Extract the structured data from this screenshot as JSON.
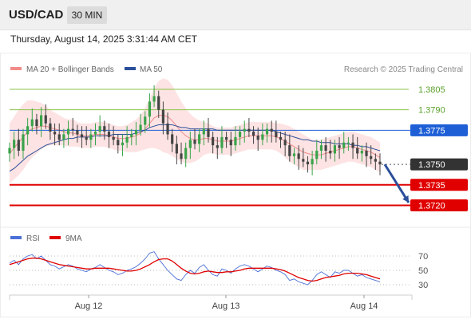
{
  "header": {
    "symbol": "USD/CAD",
    "timeframe": "30 MIN"
  },
  "datetime": "Thursday, August 14, 2025 3:31:44 AM CET",
  "legend": {
    "bb": "MA 20 + Bollinger Bands",
    "ma50": "MA 50",
    "credit": "Research © 2025 Trading Central"
  },
  "rsi_legend": {
    "rsi": "RSI",
    "ma9": "9MA"
  },
  "colors": {
    "bb": "#f28b8b",
    "ma50": "#2b4f9a",
    "rsi": "#4a6fd6",
    "ma9": "#e00000",
    "resistance": "#8bc34a",
    "pivot": "#1e5fd6",
    "support": "#e00000"
  },
  "chart_data": [
    {
      "type": "candlestick",
      "title": "USD/CAD",
      "ylim": [
        1.3708,
        1.3812
      ],
      "x_ticks": [
        "Aug 12",
        "Aug 13",
        "Aug 14"
      ],
      "levels": [
        {
          "value": 1.3805,
          "label": "1.3805",
          "kind": "resistance"
        },
        {
          "value": 1.379,
          "label": "1.3790",
          "kind": "resistance"
        },
        {
          "value": 1.3775,
          "label": "1.3775",
          "kind": "pivot"
        },
        {
          "value": 1.375,
          "label": "1.3750",
          "kind": "last"
        },
        {
          "value": 1.3735,
          "label": "1.3735",
          "kind": "support"
        },
        {
          "value": 1.372,
          "label": "1.3720",
          "kind": "support"
        }
      ],
      "forecast": {
        "from": 1.375,
        "to": 1.3722
      },
      "close_path": [
        1.3762,
        1.3768,
        1.376,
        1.3772,
        1.3778,
        1.3783,
        1.3778,
        1.3786,
        1.378,
        1.3774,
        1.3772,
        1.3768,
        1.3772,
        1.3776,
        1.3775,
        1.3772,
        1.377,
        1.3768,
        1.3772,
        1.3774,
        1.3778,
        1.3774,
        1.377,
        1.3768,
        1.3764,
        1.3766,
        1.377,
        1.3772,
        1.3775,
        1.3779,
        1.3785,
        1.3796,
        1.38,
        1.379,
        1.378,
        1.3772,
        1.3765,
        1.3758,
        1.3754,
        1.3762,
        1.3768,
        1.3765,
        1.3772,
        1.3776,
        1.377,
        1.3764,
        1.3762,
        1.377,
        1.3768,
        1.3764,
        1.377,
        1.3774,
        1.3776,
        1.3774,
        1.3771,
        1.3768,
        1.3772,
        1.3776,
        1.3774,
        1.377,
        1.3768,
        1.3764,
        1.3756,
        1.3758,
        1.3754,
        1.3752,
        1.375,
        1.3754,
        1.376,
        1.3764,
        1.376,
        1.3758,
        1.3764,
        1.3762,
        1.3766,
        1.3766,
        1.3762,
        1.3758,
        1.376,
        1.3756,
        1.3754,
        1.3752,
        1.375
      ],
      "bb_mid": [
        1.3758,
        1.3762,
        1.3766,
        1.377,
        1.3774,
        1.3776,
        1.3777,
        1.3778,
        1.3778,
        1.3777,
        1.3776,
        1.3775,
        1.3774,
        1.3773,
        1.3773,
        1.3772,
        1.3771,
        1.3771,
        1.3771,
        1.3772,
        1.3772,
        1.3772,
        1.3771,
        1.377,
        1.3769,
        1.3769,
        1.3769,
        1.377,
        1.3771,
        1.3773,
        1.3776,
        1.378,
        1.3784,
        1.3786,
        1.3786,
        1.3785,
        1.3782,
        1.3778,
        1.3774,
        1.3771,
        1.3769,
        1.3768,
        1.3768,
        1.3769,
        1.3769,
        1.3768,
        1.3767,
        1.3767,
        1.3767,
        1.3767,
        1.3768,
        1.3769,
        1.377,
        1.3771,
        1.3771,
        1.3771,
        1.3771,
        1.3771,
        1.3771,
        1.377,
        1.3769,
        1.3767,
        1.3765,
        1.3763,
        1.3761,
        1.3759,
        1.3758,
        1.3757,
        1.3757,
        1.3757,
        1.3758,
        1.3759,
        1.376,
        1.3761,
        1.3762,
        1.3763,
        1.3763,
        1.3762,
        1.3761,
        1.376,
        1.3759,
        1.3757,
        1.3755
      ],
      "bb_width": [
        0.0022,
        0.0023,
        0.0024,
        0.0024,
        0.0023,
        0.0021,
        0.0019,
        0.0017,
        0.0015,
        0.0013,
        0.0012,
        0.0011,
        0.001,
        0.001,
        0.001,
        0.0009,
        0.0009,
        0.0009,
        0.0009,
        0.0009,
        0.0009,
        0.0009,
        0.0009,
        0.0009,
        0.0009,
        0.0009,
        0.001,
        0.0011,
        0.0012,
        0.0013,
        0.0015,
        0.0018,
        0.0022,
        0.0025,
        0.0027,
        0.0027,
        0.0026,
        0.0024,
        0.0022,
        0.002,
        0.0018,
        0.0016,
        0.0014,
        0.0012,
        0.0011,
        0.001,
        0.001,
        0.001,
        0.001,
        0.001,
        0.001,
        0.001,
        0.001,
        0.001,
        0.001,
        0.001,
        0.001,
        0.001,
        0.001,
        0.001,
        0.0011,
        0.0012,
        0.0013,
        0.0013,
        0.0013,
        0.0013,
        0.0012,
        0.0011,
        0.0011,
        0.0011,
        0.0011,
        0.0011,
        0.0011,
        0.0011,
        0.0011,
        0.0011,
        0.0011,
        0.0011,
        0.0011,
        0.0011,
        0.0011,
        0.0011,
        0.0011
      ],
      "ma50": [
        1.3745,
        1.3747,
        1.375,
        1.3753,
        1.3756,
        1.3758,
        1.376,
        1.3762,
        1.3764,
        1.3765,
        1.3766,
        1.3767,
        1.3768,
        1.3769,
        1.3769,
        1.377,
        1.377,
        1.377,
        1.377,
        1.3771,
        1.3771,
        1.3771,
        1.3771,
        1.3772,
        1.3772,
        1.3772,
        1.3772,
        1.3772,
        1.3773,
        1.3774,
        1.3775,
        1.3777,
        1.3778,
        1.3779,
        1.3779,
        1.3779,
        1.3779,
        1.3778,
        1.3777,
        1.3777,
        1.3776,
        1.3776,
        1.3776,
        1.3776,
        1.3776,
        1.3776,
        1.3775,
        1.3775,
        1.3775,
        1.3775,
        1.3775,
        1.3775,
        1.3775,
        1.3775,
        1.3775,
        1.3775,
        1.3775,
        1.3775,
        1.3775,
        1.3774,
        1.3773,
        1.3772,
        1.3771,
        1.377,
        1.3769,
        1.3768,
        1.3768,
        1.3767,
        1.3767,
        1.3766,
        1.3766,
        1.3766,
        1.3765,
        1.3765,
        1.3765,
        1.3765,
        1.3764,
        1.3764,
        1.3763,
        1.3763,
        1.3762,
        1.3761,
        1.376
      ]
    },
    {
      "type": "line",
      "title": "RSI",
      "ylim": [
        20,
        80
      ],
      "y_ticks": [
        "70",
        "50",
        "30"
      ],
      "series": [
        {
          "name": "RSI",
          "values": [
            60,
            64,
            58,
            66,
            70,
            72,
            66,
            70,
            64,
            58,
            56,
            52,
            55,
            58,
            56,
            52,
            50,
            48,
            52,
            54,
            58,
            54,
            50,
            48,
            44,
            46,
            50,
            52,
            55,
            60,
            66,
            74,
            76,
            66,
            58,
            50,
            44,
            38,
            36,
            44,
            50,
            46,
            54,
            58,
            50,
            44,
            42,
            52,
            50,
            46,
            52,
            56,
            58,
            56,
            52,
            48,
            52,
            56,
            54,
            50,
            48,
            44,
            36,
            38,
            34,
            32,
            30,
            36,
            44,
            48,
            44,
            40,
            48,
            46,
            50,
            50,
            46,
            42,
            44,
            40,
            38,
            36,
            34
          ]
        },
        {
          "name": "9MA",
          "values": [
            58,
            60,
            62,
            64,
            66,
            67,
            67,
            66,
            64,
            62,
            60,
            58,
            57,
            56,
            55,
            54,
            53,
            52,
            52,
            53,
            53,
            53,
            53,
            52,
            51,
            50,
            49,
            49,
            50,
            52,
            55,
            58,
            62,
            65,
            66,
            66,
            63,
            58,
            53,
            49,
            46,
            45,
            46,
            48,
            49,
            48,
            47,
            47,
            48,
            48,
            49,
            50,
            52,
            53,
            53,
            53,
            53,
            53,
            53,
            52,
            51,
            49,
            46,
            43,
            40,
            38,
            36,
            35,
            36,
            38,
            40,
            41,
            42,
            43,
            45,
            46,
            46,
            46,
            45,
            44,
            42,
            40,
            38
          ]
        }
      ]
    }
  ]
}
